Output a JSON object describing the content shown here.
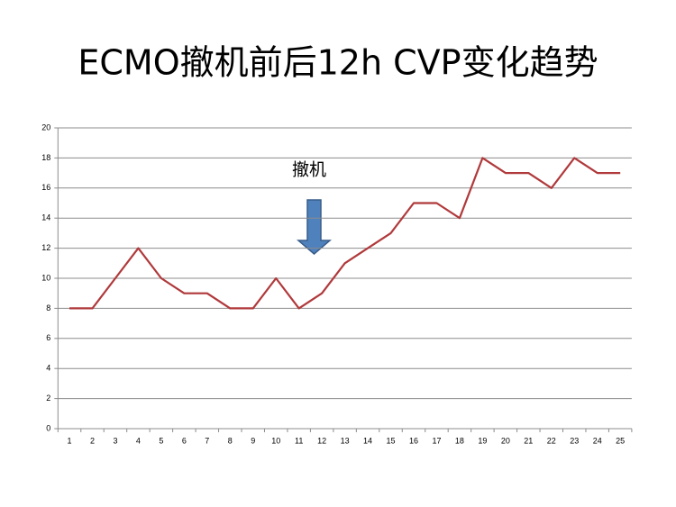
{
  "chart_data": {
    "type": "line",
    "title": "ECMO撤机前后12h CVP变化趋势",
    "annotations": [
      "撤机"
    ],
    "categories": [
      "1",
      "2",
      "3",
      "4",
      "5",
      "6",
      "7",
      "8",
      "9",
      "10",
      "11",
      "12",
      "13",
      "14",
      "15",
      "16",
      "17",
      "18",
      "19",
      "20",
      "21",
      "22",
      "23",
      "24",
      "25"
    ],
    "series": [
      {
        "color": "#b0393b",
        "values": [
          8,
          8,
          10,
          12,
          10,
          9,
          9,
          8,
          8,
          10,
          8,
          9,
          11,
          12,
          13,
          15,
          15,
          14,
          18,
          17,
          17,
          16,
          18,
          17,
          17
        ]
      }
    ],
    "ylim": [
      0,
      20
    ],
    "yticks": [
      0,
      2,
      4,
      6,
      8,
      10,
      12,
      14,
      16,
      18,
      20
    ],
    "grid": true
  }
}
